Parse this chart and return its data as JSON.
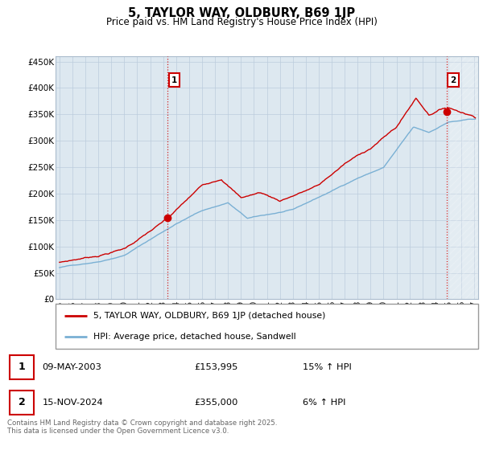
{
  "title": "5, TAYLOR WAY, OLDBURY, B69 1JP",
  "subtitle": "Price paid vs. HM Land Registry's House Price Index (HPI)",
  "legend_label_red": "5, TAYLOR WAY, OLDBURY, B69 1JP (detached house)",
  "legend_label_blue": "HPI: Average price, detached house, Sandwell",
  "sale1_date": "09-MAY-2003",
  "sale1_price": "£153,995",
  "sale1_hpi": "15% ↑ HPI",
  "sale2_date": "15-NOV-2024",
  "sale2_price": "£355,000",
  "sale2_hpi": "6% ↑ HPI",
  "footer": "Contains HM Land Registry data © Crown copyright and database right 2025.\nThis data is licensed under the Open Government Licence v3.0.",
  "ylim": [
    0,
    460000
  ],
  "yticks": [
    0,
    50000,
    100000,
    150000,
    200000,
    250000,
    300000,
    350000,
    400000,
    450000
  ],
  "red_color": "#cc0000",
  "blue_color": "#7ab0d4",
  "sale1_x": 2003.35,
  "sale1_y_red": 153995,
  "sale2_x": 2024.87,
  "sale2_y_red": 355000,
  "grid_color": "#bbccdd",
  "chart_bg": "#dde8f0",
  "background_color": "#ffffff",
  "xmin": 1994.7,
  "xmax": 2027.3,
  "xtick_start": 1995,
  "xtick_end": 2027
}
